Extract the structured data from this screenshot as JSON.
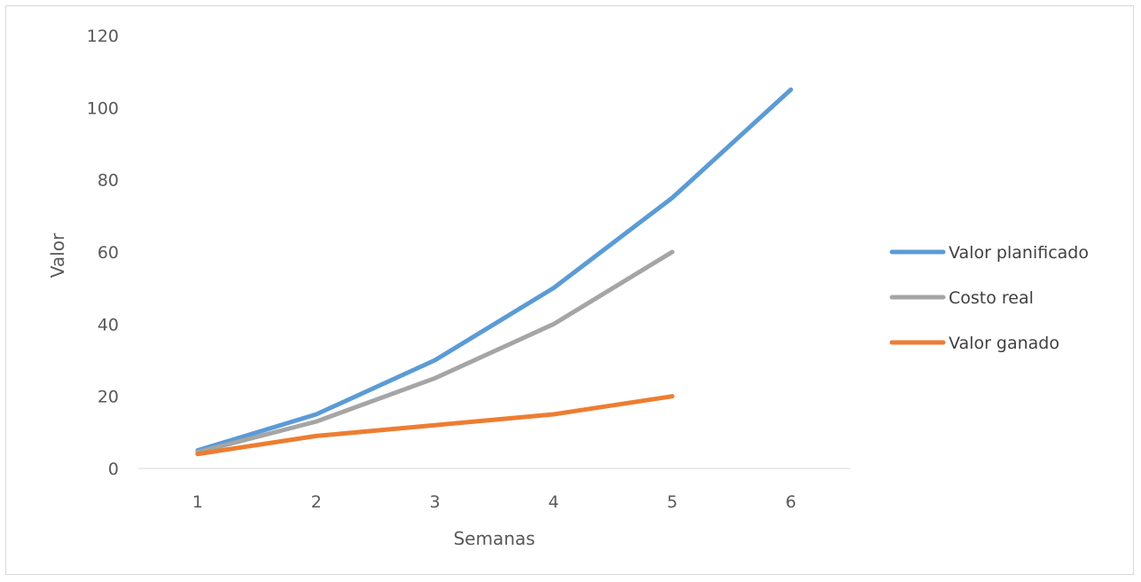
{
  "chart_data": {
    "type": "line",
    "title": "",
    "xlabel": "Semanas",
    "ylabel": "Valor",
    "categories": [
      "1",
      "2",
      "3",
      "4",
      "5",
      "6"
    ],
    "ylim": [
      0,
      120
    ],
    "yticks": [
      "0",
      "20",
      "40",
      "60",
      "80",
      "100",
      "120"
    ],
    "grid": false,
    "legend_position": "right",
    "series": [
      {
        "name": "Valor planificado",
        "color": "#5B9BD5",
        "values": [
          5,
          15,
          30,
          50,
          75,
          105
        ]
      },
      {
        "name": "Costo real",
        "color": "#A5A5A5",
        "values": [
          4.5,
          13,
          25,
          40,
          60,
          null
        ]
      },
      {
        "name": "Valor ganado",
        "color": "#ED7D31",
        "values": [
          4,
          9,
          12,
          15,
          20,
          null
        ]
      }
    ]
  }
}
